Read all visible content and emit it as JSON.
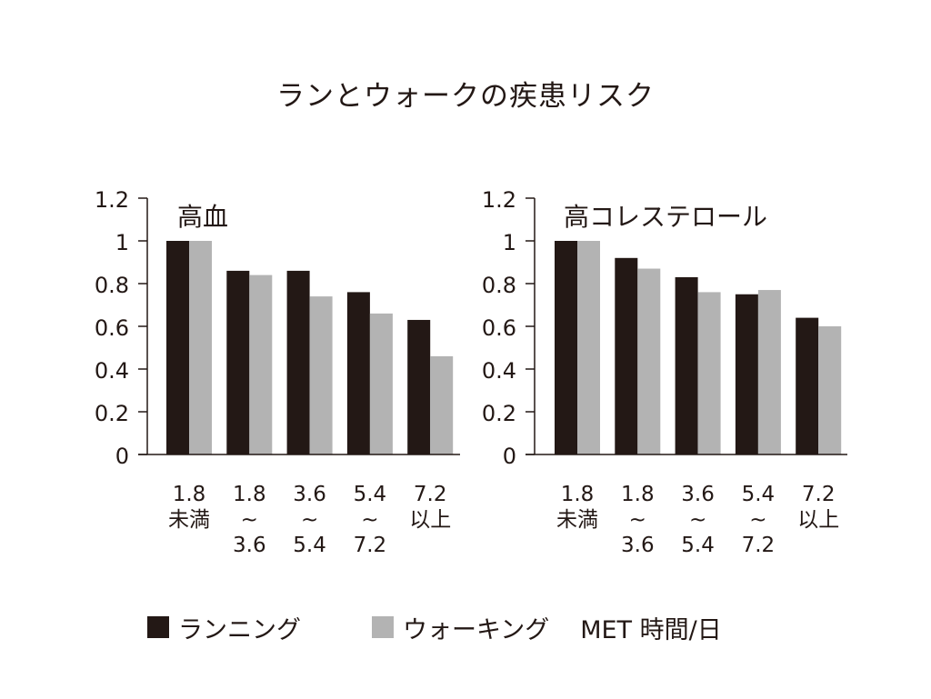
{
  "title": "ランとウォークの疾患リスク",
  "colors": {
    "running": "#231815",
    "walking": "#b3b3b3",
    "axis": "#231815",
    "text": "#231815"
  },
  "legend": {
    "running_label": "ランニング",
    "walking_label": "ウォーキング",
    "unit_label": "MET 時間/日"
  },
  "chart_data": [
    {
      "type": "bar",
      "title": "高血",
      "xlabel": "MET 時間/日",
      "ylabel": "",
      "ylim": [
        0,
        1.2
      ],
      "yticks": [
        "0",
        "0.2",
        "0.4",
        "0.6",
        "0.8",
        "1",
        "1.2"
      ],
      "grid": false,
      "categories": [
        [
          "1.8",
          "未満"
        ],
        [
          "1.8",
          "~",
          "3.6"
        ],
        [
          "3.6",
          "~",
          "5.4"
        ],
        [
          "5.4",
          "~",
          "7.2"
        ],
        [
          "7.2",
          "以上"
        ]
      ],
      "series": [
        {
          "name": "ランニング",
          "values": [
            1.0,
            0.86,
            0.86,
            0.76,
            0.63
          ]
        },
        {
          "name": "ウォーキング",
          "values": [
            1.0,
            0.84,
            0.74,
            0.66,
            0.46
          ]
        }
      ]
    },
    {
      "type": "bar",
      "title": "高コレステロール",
      "xlabel": "MET 時間/日",
      "ylabel": "",
      "ylim": [
        0,
        1.2
      ],
      "yticks": [
        "0",
        "0.2",
        "0.4",
        "0.6",
        "0.8",
        "1",
        "1.2"
      ],
      "grid": false,
      "categories": [
        [
          "1.8",
          "未満"
        ],
        [
          "1.8",
          "~",
          "3.6"
        ],
        [
          "3.6",
          "~",
          "5.4"
        ],
        [
          "5.4",
          "~",
          "7.2"
        ],
        [
          "7.2",
          "以上"
        ]
      ],
      "series": [
        {
          "name": "ランニング",
          "values": [
            1.0,
            0.92,
            0.83,
            0.75,
            0.64
          ]
        },
        {
          "name": "ウォーキング",
          "values": [
            1.0,
            0.87,
            0.76,
            0.77,
            0.6
          ]
        }
      ]
    }
  ]
}
